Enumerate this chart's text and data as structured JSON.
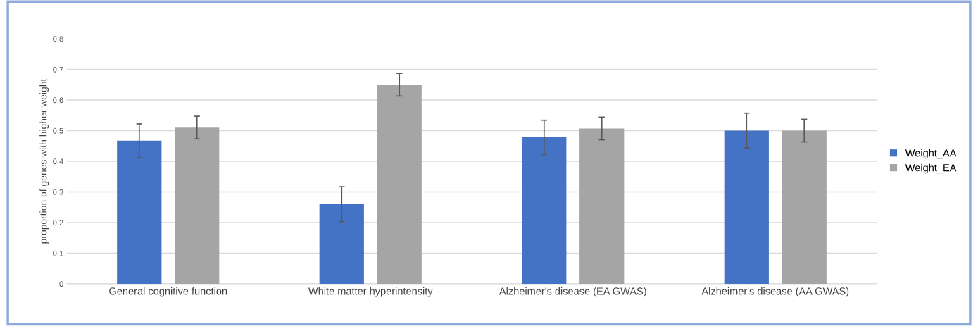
{
  "chart_data": {
    "type": "bar",
    "ylabel": "proportion of genes with higher weight",
    "categories": [
      "General cognitive function",
      "White matter hyperintensity",
      "Alzheimer's disease (EA GWAS)",
      "Alzheimer's disease (AA GWAS)"
    ],
    "series": [
      {
        "name": "Weight_AA",
        "color": "#4472c4",
        "values": [
          0.467,
          0.26,
          0.478,
          0.5
        ],
        "errors": [
          0.055,
          0.057,
          0.056,
          0.057
        ]
      },
      {
        "name": "Weight_EA",
        "color": "#a5a5a5",
        "values": [
          0.51,
          0.65,
          0.507,
          0.5
        ],
        "errors": [
          0.037,
          0.037,
          0.037,
          0.037
        ]
      }
    ],
    "ylim": [
      0,
      0.8
    ],
    "yticks": [
      {
        "value": 0,
        "label": "0"
      },
      0.1,
      0.2,
      0.3,
      0.4,
      0.5,
      0.6,
      0.7,
      0.8
    ],
    "grid": "y",
    "legend": "right"
  }
}
